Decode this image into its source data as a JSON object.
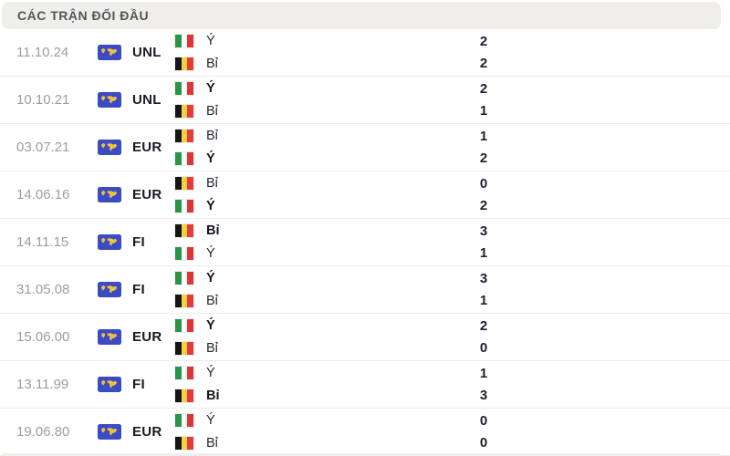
{
  "header": {
    "title": "CÁC TRẬN ĐỐI ĐẦU"
  },
  "colors": {
    "accent_blue": "#3b4bc3",
    "accent_gold": "#f2c23e",
    "header_bg": "#f0eeeb",
    "header_text": "#53565c",
    "date_text": "#9b9da2",
    "dark_text": "#1a2030",
    "separator": "#ececec"
  },
  "flags": {
    "italy": [
      "#2a9447",
      "#ffffff",
      "#dd3636"
    ],
    "belgium": [
      "#151515",
      "#f9d03f",
      "#e63b3b"
    ]
  },
  "matches": [
    {
      "date": "11.10.24",
      "competition": "UNL",
      "home": {
        "team": "Ý",
        "flag": "italy",
        "score": "2",
        "winner": false
      },
      "away": {
        "team": "Bỉ",
        "flag": "belgium",
        "score": "2",
        "winner": false
      }
    },
    {
      "date": "10.10.21",
      "competition": "UNL",
      "home": {
        "team": "Ý",
        "flag": "italy",
        "score": "2",
        "winner": true
      },
      "away": {
        "team": "Bỉ",
        "flag": "belgium",
        "score": "1",
        "winner": false
      }
    },
    {
      "date": "03.07.21",
      "competition": "EUR",
      "home": {
        "team": "Bỉ",
        "flag": "belgium",
        "score": "1",
        "winner": false
      },
      "away": {
        "team": "Ý",
        "flag": "italy",
        "score": "2",
        "winner": true
      }
    },
    {
      "date": "14.06.16",
      "competition": "EUR",
      "home": {
        "team": "Bỉ",
        "flag": "belgium",
        "score": "0",
        "winner": false
      },
      "away": {
        "team": "Ý",
        "flag": "italy",
        "score": "2",
        "winner": true
      }
    },
    {
      "date": "14.11.15",
      "competition": "FI",
      "home": {
        "team": "Bỉ",
        "flag": "belgium",
        "score": "3",
        "winner": true
      },
      "away": {
        "team": "Ý",
        "flag": "italy",
        "score": "1",
        "winner": false
      }
    },
    {
      "date": "31.05.08",
      "competition": "FI",
      "home": {
        "team": "Ý",
        "flag": "italy",
        "score": "3",
        "winner": true
      },
      "away": {
        "team": "Bỉ",
        "flag": "belgium",
        "score": "1",
        "winner": false
      }
    },
    {
      "date": "15.06.00",
      "competition": "EUR",
      "home": {
        "team": "Ý",
        "flag": "italy",
        "score": "2",
        "winner": true
      },
      "away": {
        "team": "Bỉ",
        "flag": "belgium",
        "score": "0",
        "winner": false
      }
    },
    {
      "date": "13.11.99",
      "competition": "FI",
      "home": {
        "team": "Ý",
        "flag": "italy",
        "score": "1",
        "winner": false
      },
      "away": {
        "team": "Bỉ",
        "flag": "belgium",
        "score": "3",
        "winner": true
      }
    },
    {
      "date": "19.06.80",
      "competition": "EUR",
      "home": {
        "team": "Ý",
        "flag": "italy",
        "score": "0",
        "winner": false
      },
      "away": {
        "team": "Bỉ",
        "flag": "belgium",
        "score": "0",
        "winner": false
      }
    }
  ]
}
